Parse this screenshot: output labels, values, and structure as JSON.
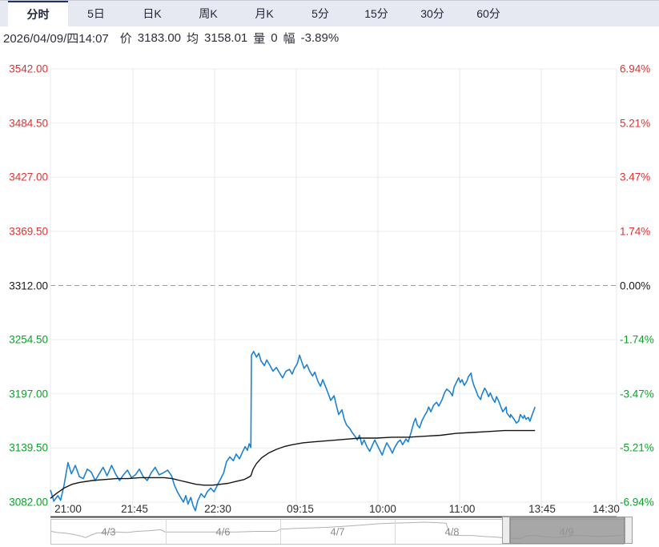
{
  "tab_bar": {
    "tabs": [
      {
        "label": "分时",
        "active": true
      },
      {
        "label": "5日",
        "active": false
      },
      {
        "label": "日K",
        "active": false
      },
      {
        "label": "周K",
        "active": false
      },
      {
        "label": "月K",
        "active": false
      },
      {
        "label": "5分",
        "active": false
      },
      {
        "label": "15分",
        "active": false
      },
      {
        "label": "30分",
        "active": false
      },
      {
        "label": "60分",
        "active": false
      }
    ]
  },
  "info_bar": {
    "datetime": "2026/04/09/四14:07",
    "price_label": "价",
    "price_value": "3183.00",
    "avg_label": "均",
    "avg_value": "3158.01",
    "volume_label": "量",
    "volume_value": "0",
    "change_label": "幅",
    "change_value": "-3.89%"
  },
  "colors": {
    "up_red": "#e03333",
    "down_green": "#0aa32a",
    "neutral": "#1a1a1a",
    "price_line": "#1d82d2",
    "avg_line": "#141414",
    "grid_h": "#ededed",
    "grid_v": "#e9e9ee",
    "zero_dash": "#9a9a9a",
    "axis_line": "#474747",
    "nav_spark": "#b2b2b2"
  },
  "chart_data": {
    "type": "line",
    "title": "intraday price vs average (time-share chart)",
    "x_axis": {
      "labels": [
        "21:00",
        "21:45",
        "22:30",
        "09:15",
        "10:00",
        "11:00",
        "13:45",
        "14:30"
      ]
    },
    "y_axis_left": {
      "ticks": [
        {
          "text": "3542.00",
          "color": "#e03333"
        },
        {
          "text": "3484.50",
          "color": "#e03333"
        },
        {
          "text": "3427.00",
          "color": "#e03333"
        },
        {
          "text": "3369.50",
          "color": "#e03333"
        },
        {
          "text": "3312.00",
          "color": "#1a1a1a"
        },
        {
          "text": "3254.50",
          "color": "#0aa32a"
        },
        {
          "text": "3197.00",
          "color": "#0aa32a"
        },
        {
          "text": "3139.50",
          "color": "#0aa32a"
        },
        {
          "text": "3082.00",
          "color": "#0aa32a"
        }
      ]
    },
    "y_axis_right": {
      "ticks": [
        {
          "text": "6.94%",
          "color": "#e03333"
        },
        {
          "text": "5.21%",
          "color": "#e03333"
        },
        {
          "text": "3.47%",
          "color": "#e03333"
        },
        {
          "text": "1.74%",
          "color": "#e03333"
        },
        {
          "text": "0.00%",
          "color": "#1a1a1a"
        },
        {
          "text": "-1.74%",
          "color": "#0aa32a"
        },
        {
          "text": "-3.47%",
          "color": "#0aa32a"
        },
        {
          "text": "-5.21%",
          "color": "#0aa32a"
        },
        {
          "text": "-6.94%",
          "color": "#0aa32a"
        }
      ]
    },
    "ylim": [
      3082,
      3542
    ],
    "baseline_price": 3312,
    "grid": true,
    "legend": "none",
    "series": [
      {
        "name": "price",
        "color": "#1d82d2",
        "points": [
          [
            0.0,
            3095
          ],
          [
            0.006,
            3083
          ],
          [
            0.013,
            3089
          ],
          [
            0.018,
            3084
          ],
          [
            0.024,
            3100
          ],
          [
            0.031,
            3124
          ],
          [
            0.037,
            3112
          ],
          [
            0.044,
            3121
          ],
          [
            0.051,
            3109
          ],
          [
            0.058,
            3107
          ],
          [
            0.065,
            3117
          ],
          [
            0.072,
            3114
          ],
          [
            0.079,
            3105
          ],
          [
            0.086,
            3112
          ],
          [
            0.093,
            3119
          ],
          [
            0.1,
            3110
          ],
          [
            0.108,
            3121
          ],
          [
            0.115,
            3112
          ],
          [
            0.122,
            3105
          ],
          [
            0.129,
            3111
          ],
          [
            0.136,
            3116
          ],
          [
            0.143,
            3108
          ],
          [
            0.15,
            3111
          ],
          [
            0.157,
            3117
          ],
          [
            0.164,
            3109
          ],
          [
            0.171,
            3105
          ],
          [
            0.178,
            3113
          ],
          [
            0.185,
            3119
          ],
          [
            0.192,
            3111
          ],
          [
            0.199,
            3113
          ],
          [
            0.207,
            3116
          ],
          [
            0.214,
            3110
          ],
          [
            0.219,
            3100
          ],
          [
            0.225,
            3092
          ],
          [
            0.231,
            3086
          ],
          [
            0.235,
            3082
          ],
          [
            0.239,
            3089
          ],
          [
            0.243,
            3080
          ],
          [
            0.248,
            3087
          ],
          [
            0.252,
            3078
          ],
          [
            0.256,
            3073
          ],
          [
            0.26,
            3083
          ],
          [
            0.266,
            3091
          ],
          [
            0.272,
            3087
          ],
          [
            0.277,
            3093
          ],
          [
            0.283,
            3097
          ],
          [
            0.289,
            3093
          ],
          [
            0.294,
            3099
          ],
          [
            0.3,
            3106
          ],
          [
            0.306,
            3113
          ],
          [
            0.311,
            3125
          ],
          [
            0.317,
            3130
          ],
          [
            0.323,
            3126
          ],
          [
            0.328,
            3133
          ],
          [
            0.334,
            3128
          ],
          [
            0.339,
            3135
          ],
          [
            0.344,
            3141
          ],
          [
            0.348,
            3137
          ],
          [
            0.351,
            3144
          ],
          [
            0.354,
            3140
          ],
          [
            0.355,
            3238
          ],
          [
            0.359,
            3242
          ],
          [
            0.364,
            3236
          ],
          [
            0.368,
            3240
          ],
          [
            0.372,
            3232
          ],
          [
            0.378,
            3227
          ],
          [
            0.382,
            3233
          ],
          [
            0.388,
            3227
          ],
          [
            0.393,
            3221
          ],
          [
            0.399,
            3225
          ],
          [
            0.405,
            3219
          ],
          [
            0.41,
            3214
          ],
          [
            0.416,
            3221
          ],
          [
            0.422,
            3223
          ],
          [
            0.427,
            3218
          ],
          [
            0.431,
            3224
          ],
          [
            0.436,
            3229
          ],
          [
            0.44,
            3238
          ],
          [
            0.444,
            3231
          ],
          [
            0.448,
            3224
          ],
          [
            0.453,
            3228
          ],
          [
            0.458,
            3221
          ],
          [
            0.463,
            3216
          ],
          [
            0.467,
            3220
          ],
          [
            0.472,
            3211
          ],
          [
            0.477,
            3205
          ],
          [
            0.481,
            3212
          ],
          [
            0.487,
            3203
          ],
          [
            0.491,
            3197
          ],
          [
            0.495,
            3190
          ],
          [
            0.501,
            3195
          ],
          [
            0.505,
            3185
          ],
          [
            0.509,
            3175
          ],
          [
            0.515,
            3180
          ],
          [
            0.519,
            3170
          ],
          [
            0.523,
            3164
          ],
          [
            0.529,
            3160
          ],
          [
            0.533,
            3156
          ],
          [
            0.538,
            3152
          ],
          [
            0.542,
            3148
          ],
          [
            0.546,
            3153
          ],
          [
            0.55,
            3143
          ],
          [
            0.554,
            3148
          ],
          [
            0.559,
            3141
          ],
          [
            0.564,
            3136
          ],
          [
            0.569,
            3143
          ],
          [
            0.573,
            3148
          ],
          [
            0.577,
            3143
          ],
          [
            0.581,
            3138
          ],
          [
            0.586,
            3132
          ],
          [
            0.59,
            3139
          ],
          [
            0.594,
            3145
          ],
          [
            0.6,
            3139
          ],
          [
            0.604,
            3134
          ],
          [
            0.608,
            3140
          ],
          [
            0.614,
            3146
          ],
          [
            0.618,
            3148
          ],
          [
            0.622,
            3143
          ],
          [
            0.628,
            3149
          ],
          [
            0.632,
            3146
          ],
          [
            0.637,
            3156
          ],
          [
            0.642,
            3167
          ],
          [
            0.645,
            3171
          ],
          [
            0.648,
            3164
          ],
          [
            0.652,
            3161
          ],
          [
            0.656,
            3168
          ],
          [
            0.661,
            3174
          ],
          [
            0.665,
            3178
          ],
          [
            0.668,
            3183
          ],
          [
            0.672,
            3178
          ],
          [
            0.677,
            3185
          ],
          [
            0.682,
            3188
          ],
          [
            0.686,
            3184
          ],
          [
            0.692,
            3191
          ],
          [
            0.696,
            3198
          ],
          [
            0.7,
            3202
          ],
          [
            0.706,
            3199
          ],
          [
            0.71,
            3195
          ],
          [
            0.713,
            3204
          ],
          [
            0.717,
            3209
          ],
          [
            0.721,
            3214
          ],
          [
            0.724,
            3209
          ],
          [
            0.727,
            3212
          ],
          [
            0.731,
            3206
          ],
          [
            0.736,
            3211
          ],
          [
            0.738,
            3215
          ],
          [
            0.743,
            3219
          ],
          [
            0.745,
            3212
          ],
          [
            0.748,
            3206
          ],
          [
            0.752,
            3200
          ],
          [
            0.755,
            3195
          ],
          [
            0.76,
            3191
          ],
          [
            0.762,
            3196
          ],
          [
            0.767,
            3203
          ],
          [
            0.77,
            3200
          ],
          [
            0.774,
            3194
          ],
          [
            0.777,
            3198
          ],
          [
            0.781,
            3192
          ],
          [
            0.785,
            3188
          ],
          [
            0.788,
            3194
          ],
          [
            0.792,
            3189
          ],
          [
            0.795,
            3184
          ],
          [
            0.799,
            3178
          ],
          [
            0.805,
            3183
          ],
          [
            0.806,
            3177
          ],
          [
            0.812,
            3172
          ],
          [
            0.813,
            3175
          ],
          [
            0.819,
            3170
          ],
          [
            0.823,
            3166
          ],
          [
            0.827,
            3168
          ],
          [
            0.83,
            3175
          ],
          [
            0.835,
            3171
          ],
          [
            0.837,
            3174
          ],
          [
            0.84,
            3170
          ],
          [
            0.844,
            3172
          ],
          [
            0.847,
            3168
          ],
          [
            0.851,
            3175
          ],
          [
            0.856,
            3183
          ]
        ]
      },
      {
        "name": "average",
        "color": "#141414",
        "points": [
          [
            0.0,
            3086
          ],
          [
            0.01,
            3091
          ],
          [
            0.024,
            3097
          ],
          [
            0.038,
            3101
          ],
          [
            0.052,
            3103
          ],
          [
            0.074,
            3105
          ],
          [
            0.095,
            3106
          ],
          [
            0.116,
            3107
          ],
          [
            0.137,
            3107
          ],
          [
            0.158,
            3108
          ],
          [
            0.18,
            3108
          ],
          [
            0.201,
            3108
          ],
          [
            0.215,
            3107
          ],
          [
            0.229,
            3105
          ],
          [
            0.243,
            3103
          ],
          [
            0.257,
            3101
          ],
          [
            0.272,
            3100
          ],
          [
            0.286,
            3100
          ],
          [
            0.3,
            3101
          ],
          [
            0.314,
            3102
          ],
          [
            0.328,
            3104
          ],
          [
            0.342,
            3106
          ],
          [
            0.349,
            3108
          ],
          [
            0.354,
            3110
          ],
          [
            0.358,
            3117
          ],
          [
            0.364,
            3123
          ],
          [
            0.373,
            3129
          ],
          [
            0.385,
            3134
          ],
          [
            0.399,
            3138
          ],
          [
            0.413,
            3141
          ],
          [
            0.427,
            3143
          ],
          [
            0.446,
            3145
          ],
          [
            0.465,
            3146
          ],
          [
            0.485,
            3147
          ],
          [
            0.505,
            3148
          ],
          [
            0.526,
            3149
          ],
          [
            0.547,
            3150
          ],
          [
            0.576,
            3150
          ],
          [
            0.604,
            3151
          ],
          [
            0.632,
            3151
          ],
          [
            0.661,
            3152
          ],
          [
            0.689,
            3153
          ],
          [
            0.717,
            3155
          ],
          [
            0.745,
            3156
          ],
          [
            0.774,
            3157
          ],
          [
            0.802,
            3158
          ],
          [
            0.83,
            3158
          ],
          [
            0.856,
            3158
          ]
        ]
      }
    ]
  },
  "navigator": {
    "dates": [
      "4/3",
      "4/6",
      "4/7",
      "4/8",
      "4/9"
    ],
    "selected_index": 4,
    "sparkline": [
      [
        0.0,
        0.5
      ],
      [
        0.01,
        0.56
      ],
      [
        0.024,
        0.59
      ],
      [
        0.038,
        0.66
      ],
      [
        0.052,
        0.75
      ],
      [
        0.06,
        0.84
      ],
      [
        0.068,
        0.72
      ],
      [
        0.079,
        0.59
      ],
      [
        0.096,
        0.56
      ],
      [
        0.114,
        0.53
      ],
      [
        0.133,
        0.56
      ],
      [
        0.149,
        0.5
      ],
      [
        0.17,
        0.47
      ],
      [
        0.191,
        0.41
      ],
      [
        0.199,
        0.53
      ],
      [
        0.219,
        0.53
      ],
      [
        0.254,
        0.53
      ],
      [
        0.289,
        0.53
      ],
      [
        0.324,
        0.53
      ],
      [
        0.358,
        0.5
      ],
      [
        0.393,
        0.5
      ],
      [
        0.4,
        0.38
      ],
      [
        0.428,
        0.34
      ],
      [
        0.456,
        0.31
      ],
      [
        0.484,
        0.28
      ],
      [
        0.512,
        0.22
      ],
      [
        0.54,
        0.16
      ],
      [
        0.568,
        0.09
      ],
      [
        0.589,
        0.06
      ],
      [
        0.623,
        0.03
      ],
      [
        0.651,
        0.0
      ],
      [
        0.679,
        0.03
      ],
      [
        0.69,
        0.06
      ],
      [
        0.696,
        0.69
      ],
      [
        0.714,
        0.72
      ],
      [
        0.735,
        0.72
      ],
      [
        0.756,
        0.78
      ],
      [
        0.777,
        0.81
      ],
      [
        0.8,
        0.88
      ],
      [
        0.821,
        0.88
      ],
      [
        0.83,
        0.75
      ],
      [
        0.844,
        0.72
      ],
      [
        0.861,
        0.78
      ],
      [
        0.882,
        0.84
      ],
      [
        0.9,
        0.78
      ],
      [
        0.917,
        0.72
      ],
      [
        0.938,
        0.75
      ],
      [
        0.959,
        0.78
      ],
      [
        0.98,
        0.75
      ],
      [
        1.0,
        0.69
      ]
    ]
  }
}
